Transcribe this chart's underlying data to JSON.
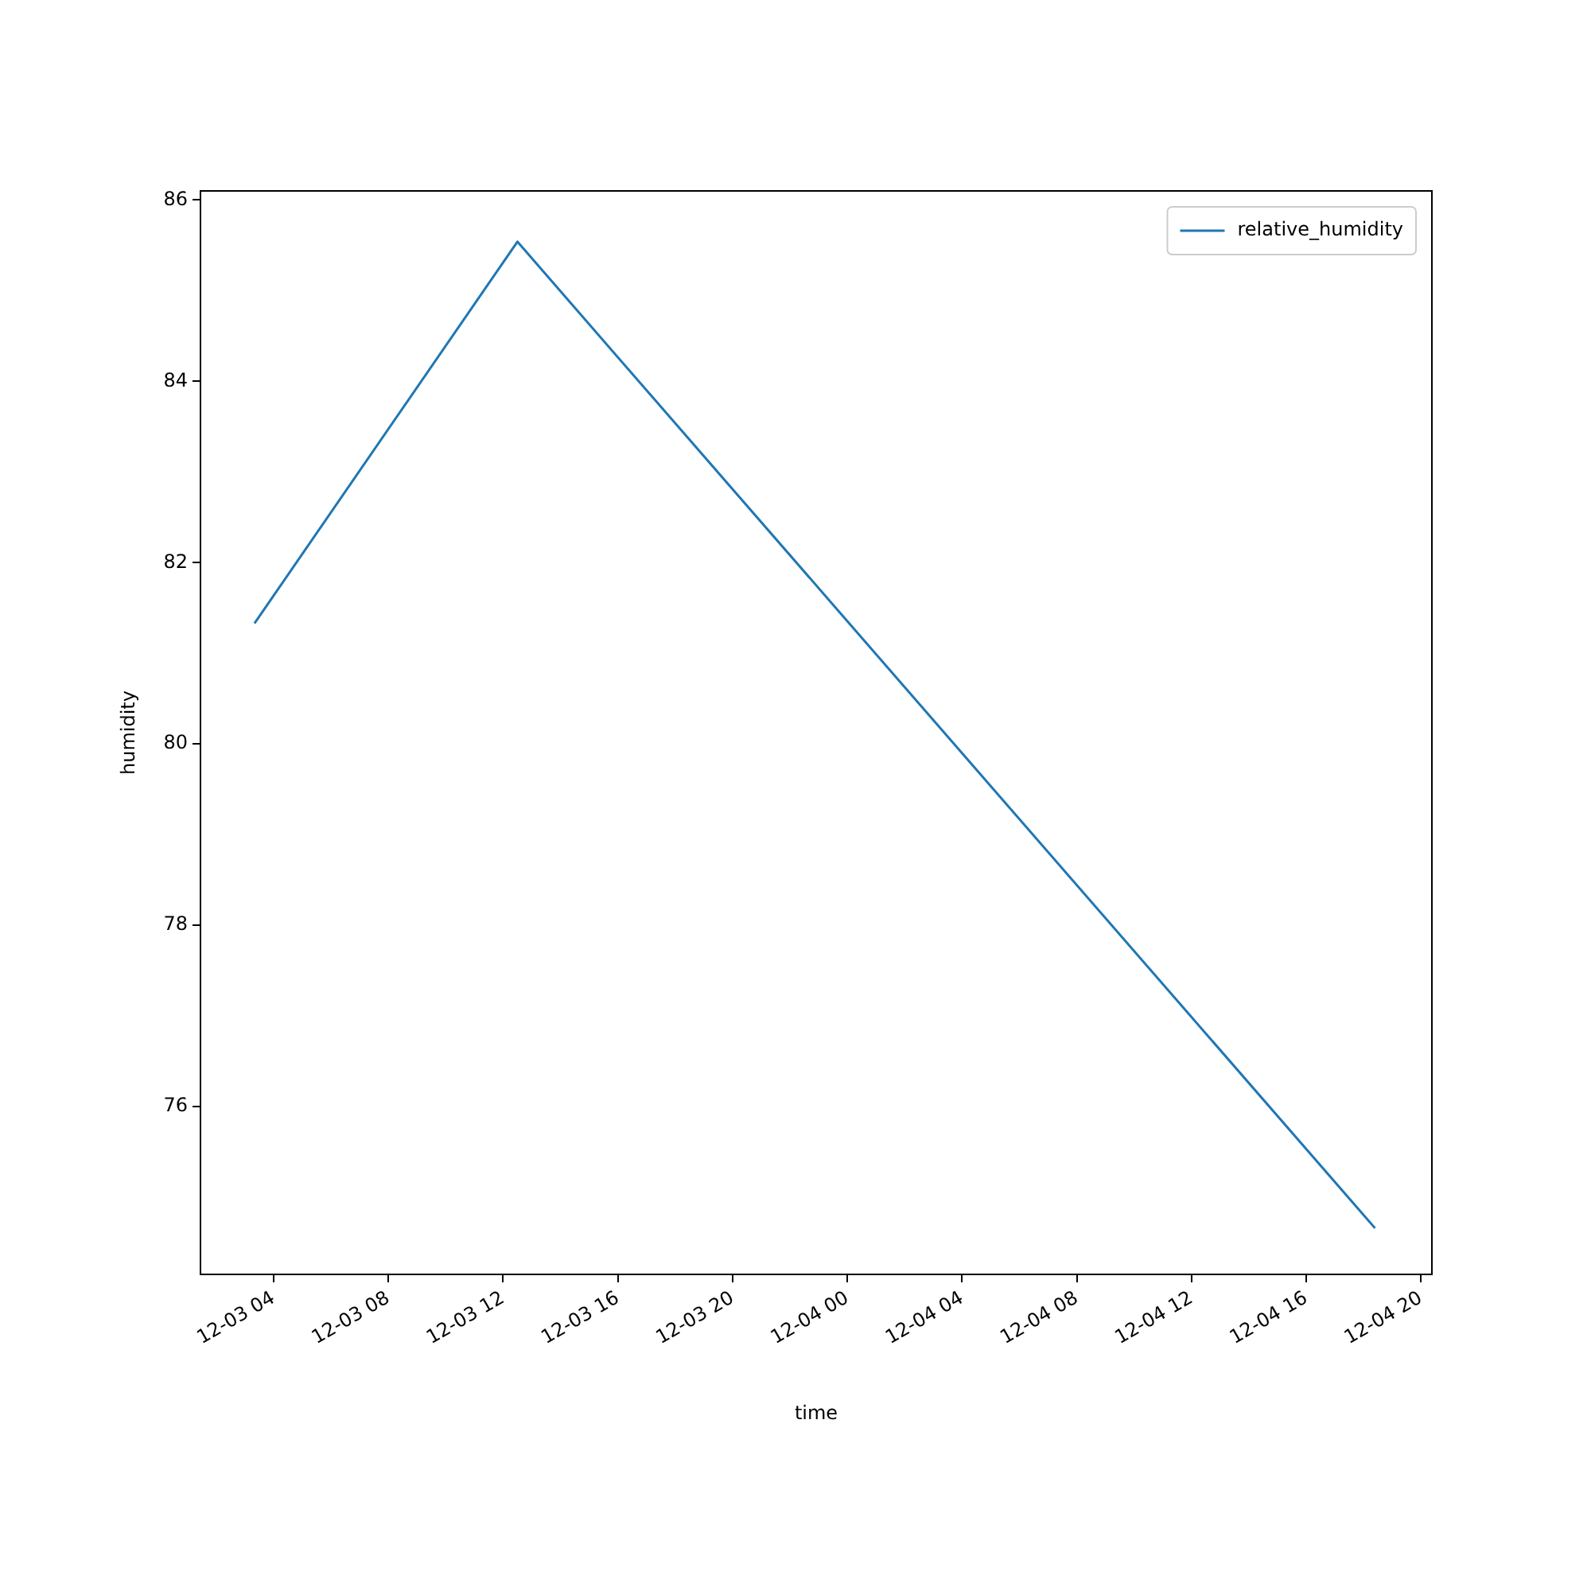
{
  "chart_data": {
    "type": "line",
    "xlabel": "time",
    "ylabel": "humidity",
    "x": [
      "--12-03T03:20",
      "--12-03T12:30",
      "--12-04T18:24"
    ],
    "series": [
      {
        "name": "relative_humidity",
        "color": "#1f77b4",
        "values": [
          81.33,
          85.54,
          74.66
        ]
      }
    ],
    "xlim": [
      "--12-03T01:27",
      "--12-04T20:23"
    ],
    "xticks": [
      {
        "value": "--12-03T04:00",
        "label": "12-03 04"
      },
      {
        "value": "--12-03T08:00",
        "label": "12-03 08"
      },
      {
        "value": "--12-03T12:00",
        "label": "12-03 12"
      },
      {
        "value": "--12-03T16:00",
        "label": "12-03 16"
      },
      {
        "value": "--12-03T20:00",
        "label": "12-03 20"
      },
      {
        "value": "--12-04T00:00",
        "label": "12-04 00"
      },
      {
        "value": "--12-04T04:00",
        "label": "12-04 04"
      },
      {
        "value": "--12-04T08:00",
        "label": "12-04 08"
      },
      {
        "value": "--12-04T12:00",
        "label": "12-04 12"
      },
      {
        "value": "--12-04T16:00",
        "label": "12-04 16"
      },
      {
        "value": "--12-04T20:00",
        "label": "12-04 20"
      }
    ],
    "ylim": [
      74.15,
      86.1
    ],
    "yticks": [
      76,
      78,
      80,
      82,
      84,
      86
    ],
    "grid": false,
    "legend": "top right",
    "marker": "none",
    "line_style": "solid"
  }
}
